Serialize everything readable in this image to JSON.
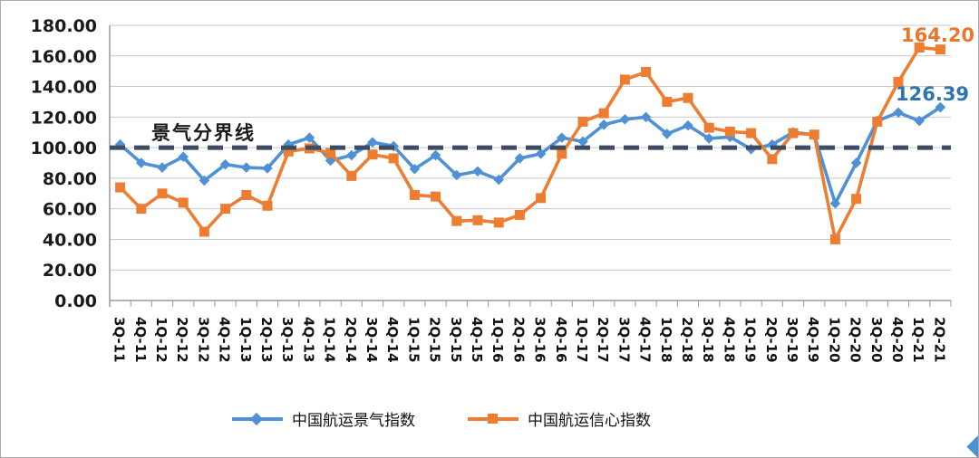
{
  "chart_data": {
    "type": "line",
    "title": "",
    "categories": [
      "3Q-11",
      "4Q-11",
      "1Q-12",
      "2Q-12",
      "3Q-12",
      "4Q-12",
      "1Q-13",
      "2Q-13",
      "3Q-13",
      "4Q-13",
      "1Q-14",
      "2Q-14",
      "3Q-14",
      "4Q-14",
      "1Q-15",
      "2Q-15",
      "3Q-15",
      "4Q-15",
      "1Q-16",
      "2Q-16",
      "3Q-16",
      "4Q-16",
      "1Q-17",
      "2Q-17",
      "3Q-17",
      "4Q-17",
      "1Q-18",
      "2Q-18",
      "3Q-18",
      "4Q-18",
      "1Q-19",
      "2Q-19",
      "3Q-19",
      "4Q-19",
      "1Q-20",
      "2Q-20",
      "3Q-20",
      "4Q-20",
      "1Q-21",
      "2Q-21"
    ],
    "series": [
      {
        "name": "中国航运景气指数",
        "color": "#4e91d5",
        "marker": "diamond",
        "end_label": "126.39",
        "end_label_color": "#2e74b5",
        "values": [
          102,
          90,
          87,
          94,
          78.5,
          89,
          87,
          86.5,
          102,
          106.5,
          91.5,
          95,
          103.5,
          101,
          86,
          95,
          82,
          84.5,
          79,
          93,
          96,
          106.5,
          104,
          115,
          118.5,
          120,
          109,
          114.5,
          106,
          107,
          99,
          102,
          110,
          108.5,
          63.5,
          90,
          117.5,
          123,
          117.5,
          126.39
        ]
      },
      {
        "name": "中国航运信心指数",
        "color": "#ed7d31",
        "marker": "square",
        "end_label": "164.20",
        "end_label_color": "#e8762c",
        "values": [
          74,
          60,
          70,
          64,
          45,
          60,
          69,
          62,
          97.5,
          99.5,
          96.5,
          81.5,
          95.5,
          93,
          69,
          68,
          52,
          52.5,
          51,
          56,
          67,
          96,
          117,
          122.5,
          144.5,
          149.5,
          130,
          132.5,
          113,
          110.5,
          109.5,
          92.5,
          109.5,
          108.5,
          40,
          66.5,
          117,
          143,
          165.5,
          164.2
        ]
      }
    ],
    "ylim": [
      0,
      180
    ],
    "yticks": [
      {
        "v": 180,
        "label": "180.00"
      },
      {
        "v": 160,
        "label": "160.00"
      },
      {
        "v": 140,
        "label": "140.00"
      },
      {
        "v": 120,
        "label": "120.00"
      },
      {
        "v": 100,
        "label": "100.00"
      },
      {
        "v": 80,
        "label": "80.00"
      },
      {
        "v": 60,
        "label": "60.00"
      },
      {
        "v": 40,
        "label": "40.00"
      },
      {
        "v": 20,
        "label": "20.00"
      },
      {
        "v": 0,
        "label": "0.00"
      }
    ],
    "reference_line": {
      "value": 100,
      "label": "景气分界线",
      "color": "#3d4c63",
      "style": "dashed"
    },
    "grid": true,
    "legend_position": "bottom",
    "colors": {
      "grid": "#c9c9c9",
      "axis": "#9a9a9a",
      "tick_text": "#1a1a1a"
    }
  }
}
